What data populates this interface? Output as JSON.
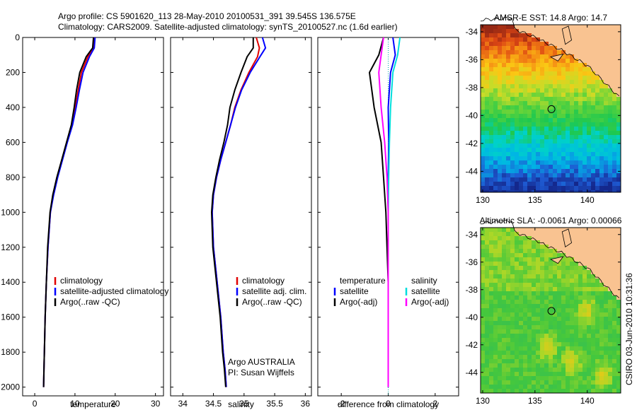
{
  "header": {
    "line1": "Argo profile: CS 5901620_113 28-May-2010 20100531_391 39.545S 136.575E",
    "line2": "Climatology: CARS2009. Satellite-adjusted climatology: synTS_20100527.nc (1.6d earlier)"
  },
  "footer_credit": "Argo AUSTRALIA",
  "footer_pi": "PI: Susan Wijffels",
  "side_stamp": "CSIRO 03-Jun-2010 10:31:36",
  "colors": {
    "climatology": "#e00000",
    "satellite": "#0000ff",
    "argo": "#000000",
    "satellite_light": "#00dddd",
    "argo_adj": "#ff00ff",
    "land": "#f9c391"
  },
  "chart_data": [
    {
      "type": "line",
      "xlabel": "temperature",
      "ylabel": "",
      "xlim": [
        -3,
        32
      ],
      "ylim": [
        2050,
        0
      ],
      "xticks": [
        "0",
        "10",
        "20",
        "30"
      ],
      "yticks": [
        "0",
        "200",
        "400",
        "600",
        "800",
        "1000",
        "1200",
        "1400",
        "1600",
        "1800",
        "2000"
      ],
      "legend": [
        "climatology",
        "satellite-adjusted climatology",
        "Argo(..raw -QC)"
      ],
      "series": [
        {
          "name": "climatology",
          "color": "climatology",
          "x": [
            14.8,
            14.6,
            13.2,
            11.6,
            10.8,
            10.1,
            9.3,
            8.0,
            6.8,
            5.6,
            4.6,
            3.9,
            3.3,
            2.9,
            2.6,
            2.4,
            2.3,
            2.2
          ],
          "y": [
            0,
            60,
            110,
            200,
            300,
            400,
            500,
            600,
            700,
            800,
            900,
            1000,
            1200,
            1400,
            1600,
            1800,
            1900,
            2000
          ]
        },
        {
          "name": "satellite-adjusted climatology",
          "color": "satellite",
          "x": [
            15.0,
            14.8,
            13.6,
            12.0,
            11.1,
            10.3,
            9.4,
            8.1,
            6.9,
            5.7,
            4.7,
            3.9,
            3.3,
            2.9,
            2.6,
            2.4,
            2.3,
            2.2
          ],
          "y": [
            0,
            60,
            110,
            200,
            300,
            400,
            500,
            600,
            700,
            800,
            900,
            1000,
            1200,
            1400,
            1600,
            1800,
            1900,
            2000
          ]
        },
        {
          "name": "Argo(..raw -QC)",
          "color": "argo",
          "x": [
            14.6,
            14.4,
            12.8,
            11.2,
            10.4,
            9.8,
            9.1,
            7.9,
            6.7,
            5.5,
            4.5,
            3.8,
            3.2,
            2.9,
            2.6,
            2.4,
            2.3,
            2.2
          ],
          "y": [
            0,
            60,
            110,
            200,
            300,
            400,
            500,
            600,
            700,
            800,
            900,
            1000,
            1200,
            1400,
            1600,
            1800,
            1900,
            2000
          ]
        }
      ]
    },
    {
      "type": "line",
      "xlabel": "salinity",
      "xlim": [
        33.8,
        36.1
      ],
      "ylim": [
        2050,
        0
      ],
      "xticks": [
        "34",
        "34.5",
        "35",
        "35.5",
        "36"
      ],
      "legend": [
        "climatology",
        "satellite adj. clim.",
        "Argo(..raw -QC)"
      ],
      "series": [
        {
          "name": "climatology",
          "color": "climatology",
          "x": [
            35.2,
            35.25,
            35.22,
            35.08,
            34.95,
            34.85,
            34.78,
            34.7,
            34.62,
            34.55,
            34.5,
            34.48,
            34.5,
            34.56,
            34.62,
            34.66,
            34.69,
            34.71
          ],
          "y": [
            0,
            60,
            110,
            200,
            300,
            400,
            500,
            600,
            700,
            800,
            900,
            1000,
            1200,
            1400,
            1600,
            1800,
            1900,
            2000
          ]
        },
        {
          "name": "satellite adj. clim.",
          "color": "satellite",
          "x": [
            35.3,
            35.35,
            35.26,
            35.1,
            34.96,
            34.86,
            34.78,
            34.7,
            34.62,
            34.55,
            34.5,
            34.48,
            34.5,
            34.56,
            34.62,
            34.66,
            34.69,
            34.71
          ],
          "y": [
            0,
            60,
            110,
            200,
            300,
            400,
            500,
            600,
            700,
            800,
            900,
            1000,
            1200,
            1400,
            1600,
            1800,
            1900,
            2000
          ]
        },
        {
          "name": "Argo(..raw -QC)",
          "color": "argo",
          "x": [
            35.15,
            35.15,
            35.05,
            34.95,
            34.85,
            34.77,
            34.73,
            34.67,
            34.6,
            34.54,
            34.49,
            34.47,
            34.49,
            34.55,
            34.61,
            34.65,
            34.68,
            34.7
          ],
          "y": [
            0,
            60,
            110,
            200,
            300,
            400,
            500,
            600,
            700,
            800,
            900,
            1000,
            1200,
            1400,
            1600,
            1800,
            1900,
            2000
          ]
        }
      ]
    },
    {
      "type": "line",
      "xlabel": "difference from climatology",
      "xlim": [
        -3,
        3
      ],
      "ylim": [
        2050,
        0
      ],
      "xticks": [
        "-2",
        "0",
        "2"
      ],
      "legend": [
        "temperature",
        "satellite",
        "Argo(-adj)",
        "salinity",
        "satellite",
        "Argo(-adj)"
      ],
      "series": [
        {
          "name": "temperature satellite",
          "color": "satellite",
          "x": [
            0.2,
            0.3,
            0.1,
            0.0,
            0.02,
            0.0,
            0.0,
            0.0,
            0.0,
            0.0,
            0.0
          ],
          "y": [
            0,
            100,
            200,
            400,
            600,
            800,
            1000,
            1200,
            1400,
            1700,
            2000
          ]
        },
        {
          "name": "temperature Argo(-adj)",
          "color": "argo",
          "x": [
            -0.2,
            -0.4,
            -0.8,
            -0.6,
            -0.3,
            -0.2,
            -0.1,
            -0.05,
            0.0,
            0.0,
            0.0
          ],
          "y": [
            0,
            100,
            200,
            400,
            600,
            800,
            1000,
            1200,
            1400,
            1700,
            2000
          ]
        },
        {
          "name": "salinity satellite",
          "color": "satellite_light",
          "x": [
            0.5,
            0.4,
            0.2,
            0.1,
            0.05,
            0.02,
            0.0,
            0.0,
            0.0,
            0.0,
            0.0
          ],
          "y": [
            0,
            100,
            200,
            400,
            600,
            800,
            1000,
            1200,
            1400,
            1700,
            2000
          ]
        },
        {
          "name": "salinity Argo(-adj)",
          "color": "argo_adj",
          "x": [
            -0.2,
            -0.3,
            -0.4,
            -0.3,
            -0.15,
            -0.05,
            0.0,
            0.0,
            0.0,
            0.0,
            0.0
          ],
          "y": [
            0,
            100,
            200,
            400,
            600,
            800,
            1000,
            1200,
            1400,
            1700,
            2000
          ]
        }
      ]
    },
    {
      "type": "heatmap",
      "title": "AMSR-E SST: 14.8 Argo: 14.7",
      "xlim": [
        129.8,
        143.2
      ],
      "ylim": [
        -45.5,
        -33.5
      ],
      "xticks": [
        "130",
        "135",
        "140"
      ],
      "yticks": [
        "-34",
        "-36",
        "-38",
        "-40",
        "-42",
        "-44"
      ],
      "marker": {
        "lon": 136.575,
        "lat": -39.545
      }
    },
    {
      "type": "heatmap",
      "title": "Altimetric SLA: -0.0061 Argo: 0.00066",
      "xlim": [
        129.8,
        143.2
      ],
      "ylim": [
        -45.5,
        -33.5
      ],
      "xticks": [
        "130",
        "135",
        "140"
      ],
      "yticks": [
        "-34",
        "-36",
        "-38",
        "-40",
        "-42",
        "-44"
      ],
      "marker": {
        "lon": 136.575,
        "lat": -39.545
      }
    }
  ]
}
